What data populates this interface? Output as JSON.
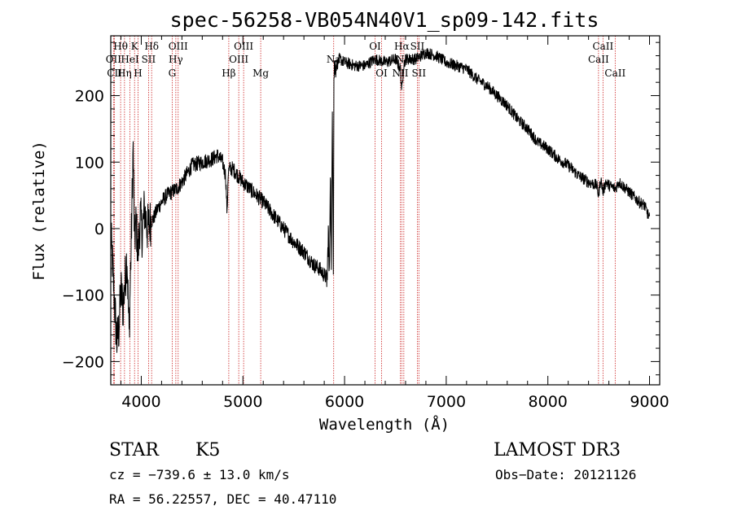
{
  "chart_data": {
    "type": "line",
    "title": "spec-56258-VB054N40V1_sp09-142.fits",
    "xlabel": "Wavelength (Å)",
    "ylabel": "Flux (relative)",
    "xlim": [
      3700,
      9100
    ],
    "ylim": [
      -235,
      290
    ],
    "xticks": [
      4000,
      5000,
      6000,
      7000,
      8000,
      9000
    ],
    "yticks": [
      -200,
      -100,
      0,
      100,
      200
    ],
    "ytick_labels": [
      "−200",
      "−100",
      "0",
      "100",
      "200"
    ],
    "spectrum_anchors": {
      "x": [
        3700,
        3720,
        3740,
        3760,
        3780,
        3800,
        3820,
        3840,
        3860,
        3880,
        3900,
        3920,
        3933,
        3950,
        3968,
        3990,
        4010,
        4030,
        4060,
        4090,
        4120,
        4160,
        4200,
        4250,
        4300,
        4350,
        4400,
        4500,
        4600,
        4700,
        4750,
        4800,
        4830,
        4845,
        4855,
        4870,
        4900,
        4950,
        5000,
        5100,
        5200,
        5300,
        5400,
        5500,
        5600,
        5700,
        5750,
        5800,
        5830,
        5840,
        5850,
        5860,
        5870,
        5880,
        5890,
        5895,
        5900,
        5910,
        5920,
        5950,
        6000,
        6100,
        6200,
        6300,
        6400,
        6500,
        6550,
        6563,
        6580,
        6600,
        6700,
        6800,
        6900,
        7000,
        7100,
        7200,
        7300,
        7400,
        7500,
        7600,
        7700,
        7800,
        7900,
        8000,
        8100,
        8200,
        8300,
        8400,
        8480,
        8498,
        8520,
        8542,
        8570,
        8600,
        8662,
        8700,
        8800,
        8900,
        8950,
        9000
      ],
      "y": [
        -10,
        -60,
        -120,
        -170,
        -150,
        -90,
        -120,
        -80,
        -40,
        -160,
        -30,
        120,
        -20,
        10,
        -40,
        20,
        -10,
        30,
        0,
        10,
        15,
        30,
        40,
        50,
        55,
        60,
        70,
        95,
        100,
        105,
        110,
        100,
        80,
        20,
        85,
        90,
        90,
        80,
        70,
        55,
        40,
        20,
        0,
        -20,
        -35,
        -55,
        -60,
        -70,
        -75,
        0,
        -80,
        100,
        -70,
        200,
        -50,
        230,
        240,
        250,
        245,
        255,
        250,
        245,
        245,
        255,
        250,
        255,
        240,
        205,
        245,
        255,
        255,
        265,
        260,
        250,
        245,
        240,
        225,
        215,
        200,
        185,
        165,
        150,
        130,
        120,
        105,
        95,
        80,
        70,
        65,
        50,
        75,
        55,
        70,
        65,
        60,
        70,
        55,
        40,
        35,
        15
      ]
    },
    "spectral_lines": [
      {
        "wave": 3797,
        "label": "Hθ",
        "row": 1
      },
      {
        "wave": 3835,
        "label": "Hη",
        "row": 3
      },
      {
        "wave": 3889,
        "label": "HeI",
        "row": 2
      },
      {
        "wave": 3934,
        "label": "K",
        "row": 1
      },
      {
        "wave": 3968,
        "label": "H",
        "row": 3
      },
      {
        "wave": 4102,
        "label": "Hδ",
        "row": 1
      },
      {
        "wave": 4072,
        "label": "SII",
        "row": 2
      },
      {
        "wave": 3727,
        "label": "OII",
        "row": 2
      },
      {
        "wave": 3737,
        "label": "CII",
        "row": 3
      },
      {
        "wave": 4340,
        "label": "Hγ",
        "row": 2
      },
      {
        "wave": 4304,
        "label": "G",
        "row": 3
      },
      {
        "wave": 4363,
        "label": "OIII",
        "row": 1
      },
      {
        "wave": 4861,
        "label": "Hβ",
        "row": 3
      },
      {
        "wave": 4959,
        "label": "OIII",
        "row": 2
      },
      {
        "wave": 5007,
        "label": "OIII",
        "row": 1
      },
      {
        "wave": 5175,
        "label": "Mg",
        "row": 3
      },
      {
        "wave": 5893,
        "label": "Na",
        "row": 2
      },
      {
        "wave": 6300,
        "label": "OI",
        "row": 1
      },
      {
        "wave": 6364,
        "label": "OI",
        "row": 3
      },
      {
        "wave": 6548,
        "label": "NII",
        "row": 3
      },
      {
        "wave": 6563,
        "label": "Hα",
        "row": 1
      },
      {
        "wave": 6583,
        "label": "NII",
        "row": 2
      },
      {
        "wave": 6716,
        "label": "SII",
        "row": 1
      },
      {
        "wave": 6731,
        "label": "SII",
        "row": 3
      },
      {
        "wave": 8498,
        "label": "CaII",
        "row": 2
      },
      {
        "wave": 8542,
        "label": "CaII",
        "row": 1
      },
      {
        "wave": 8662,
        "label": "CaII",
        "row": 3
      }
    ]
  },
  "info": {
    "class": "STAR",
    "subclass": "K5",
    "survey": "LAMOST DR3",
    "cz": "cz = −739.6 ± 13.0 km/s",
    "obs_date": "Obs−Date: 20121126",
    "coords": "RA =  56.22557, DEC =  40.47110"
  },
  "colors": {
    "line_marker": "#cc2222",
    "spectrum": "#000000",
    "axes": "#000000"
  }
}
